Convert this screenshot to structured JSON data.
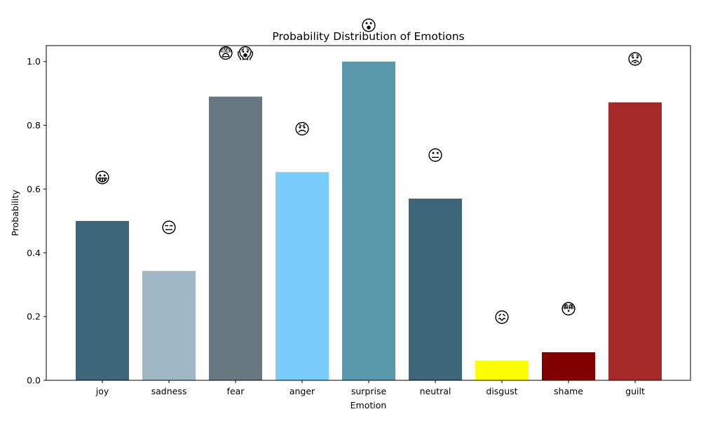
{
  "chart_data": {
    "type": "bar",
    "title": "Probability Distribution of Emotions",
    "xlabel": "Emotion",
    "ylabel": "Probability",
    "ylim": [
      0,
      1.05
    ],
    "yticks": [
      "0.0",
      "0.2",
      "0.4",
      "0.6",
      "0.8",
      "1.0"
    ],
    "grid": false,
    "categories": [
      "joy",
      "sadness",
      "fear",
      "anger",
      "surprise",
      "neutral",
      "disgust",
      "shame",
      "guilt"
    ],
    "values": [
      0.5,
      0.343,
      0.89,
      0.653,
      1.0,
      0.57,
      0.062,
      0.088,
      0.872
    ],
    "colors": [
      "#3e6679",
      "#a0b8c6",
      "#677880",
      "#7acdfb",
      "#5a98ab",
      "#3e6679",
      "#ffff00",
      "#800000",
      "#a52a2a"
    ],
    "emojis": [
      [
        "😀"
      ],
      [
        "😑"
      ],
      [
        "😨",
        "😱"
      ],
      [
        "😠"
      ],
      [
        "😮"
      ],
      [
        "😐"
      ],
      [
        "😖"
      ],
      [
        "😳"
      ],
      [
        "😟"
      ]
    ]
  }
}
